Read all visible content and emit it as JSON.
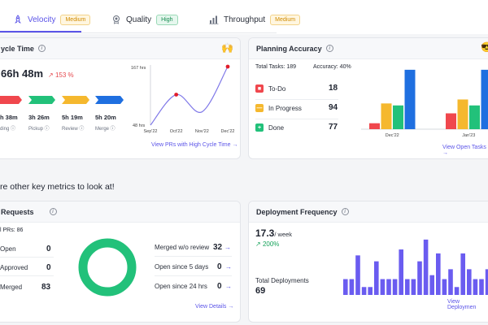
{
  "tabs": [
    {
      "label": "Velocity",
      "badge": "Medium",
      "badge_type": "medium",
      "icon": "rocket-icon"
    },
    {
      "label": "Quality",
      "badge": "High",
      "badge_type": "high",
      "icon": "medal-icon"
    },
    {
      "label": "Throughput",
      "badge": "Medium",
      "badge_type": "medium",
      "icon": "bar-chart-icon"
    }
  ],
  "cycle_time": {
    "title": "ycle Time",
    "value": "66h 48m",
    "change": "153 %",
    "emoji": "🙌",
    "stages": [
      {
        "value": "h 38m",
        "label": "ding",
        "color": "#f0474d"
      },
      {
        "value": "3h 26m",
        "label": "Pickup",
        "color": "#22c17a"
      },
      {
        "value": "5h 19m",
        "label": "Review",
        "color": "#f5b82e"
      },
      {
        "value": "5h 20m",
        "label": "Merge",
        "color": "#1f6fe0"
      }
    ],
    "link": "View PRs with High Cycle Time →"
  },
  "chart_data": [
    {
      "type": "line",
      "x": [
        "Sep'22",
        "Oct'22",
        "Nov'22",
        "Dec'22"
      ],
      "values": [
        48,
        110,
        75,
        167
      ],
      "y_top_label": "167 hrs",
      "y_bottom_label": "48 hrs",
      "ylim": [
        48,
        167
      ],
      "color": "#7f78e8",
      "highlight_color": "#e11d2a"
    },
    {
      "type": "bar",
      "categories": [
        "Dec'22",
        "Jan'23"
      ],
      "series": [
        {
          "values": [
            3,
            8
          ]
        },
        {
          "values": [
            13,
            15
          ]
        },
        {
          "values": [
            12,
            12
          ]
        },
        {
          "values": [
            30,
            30
          ]
        }
      ],
      "colors": [
        "#f0474d",
        "#f5b82e",
        "#22c17a",
        "#1f6fe0"
      ],
      "ylim": [
        0,
        32
      ]
    },
    {
      "type": "bar",
      "values": [
        8,
        8,
        20,
        4,
        4,
        17,
        8,
        8,
        8,
        23,
        8,
        8,
        17,
        28,
        10,
        21,
        8,
        13,
        4,
        21,
        13,
        8,
        8,
        13
      ],
      "color": "#6a5cf0",
      "ylim": [
        0,
        30
      ]
    }
  ],
  "planning": {
    "title": "Planning Accuracy",
    "total_tasks": "Total Tasks: 189",
    "accuracy": "Accuracy: 40%",
    "emoji": "😎",
    "rows": [
      {
        "label": "To-Do",
        "value": "18",
        "color": "#f0474d",
        "mark": "■"
      },
      {
        "label": "In Progress",
        "value": "94",
        "color": "#f5b82e",
        "mark": "—"
      },
      {
        "label": "Done",
        "value": "77",
        "color": "#22c17a",
        "mark": "+"
      }
    ],
    "link": "View Open Tasks →"
  },
  "section_title": "re other key metrics to look at!",
  "pull_requests": {
    "title": "Requests",
    "total": "l PRs: 86",
    "rows": [
      {
        "label": "Open",
        "value": "0"
      },
      {
        "label": "Approved",
        "value": "0"
      },
      {
        "label": "Merged",
        "value": "83"
      }
    ],
    "right_rows": [
      {
        "label": "Merged w/o review",
        "value": "32"
      },
      {
        "label": "Open since 5 days",
        "value": "0"
      },
      {
        "label": "Open since 24 hrs",
        "value": "0"
      }
    ],
    "arrow": "→",
    "link": "View Details →",
    "donut_color": "#22c17a"
  },
  "deployment": {
    "title": "Deployment Frequency",
    "value": "17.3",
    "unit": "/ week",
    "change": "200%",
    "total_label": "Total Deployments",
    "total_value": "69",
    "link": "View Deploymen"
  }
}
